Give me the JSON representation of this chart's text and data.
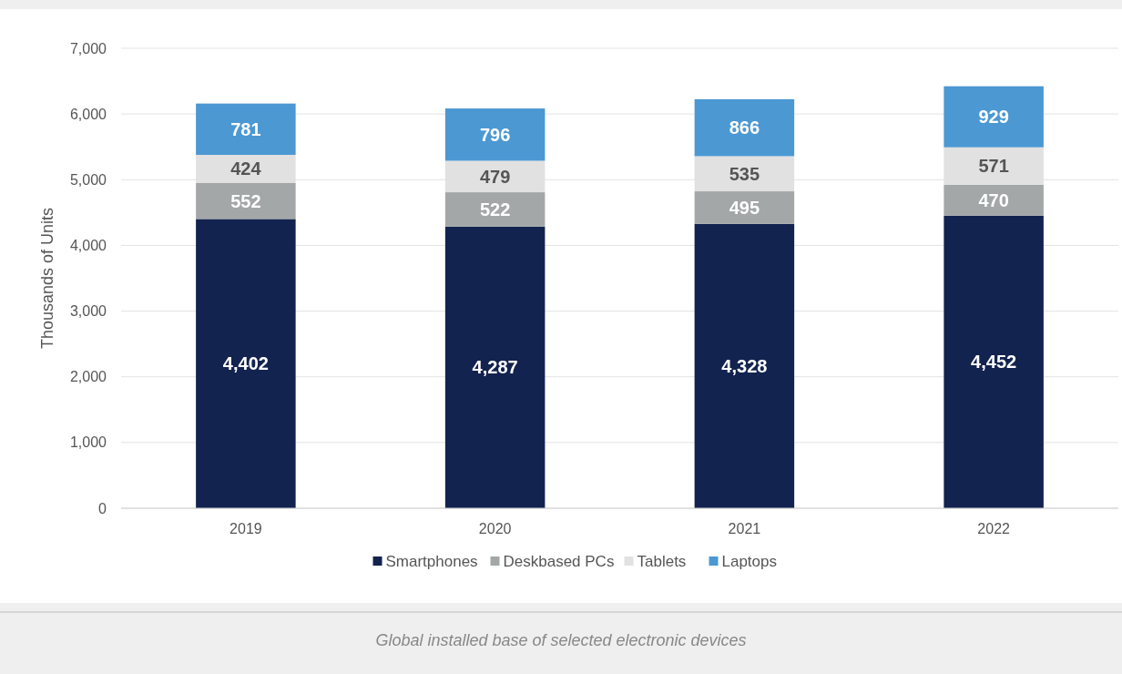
{
  "chart_data": {
    "type": "bar",
    "stacked": true,
    "ylabel": "Thousands of Units",
    "categories": [
      "2019",
      "2020",
      "2021",
      "2022"
    ],
    "series": [
      {
        "name": "Smartphones",
        "color": "#13234f",
        "values": [
          4402,
          4287,
          4328,
          4452
        ],
        "value_labels": [
          "4,402",
          "4,287",
          "4,328",
          "4,452"
        ]
      },
      {
        "name": "Deskbased PCs",
        "color": "#a3a7a8",
        "values": [
          552,
          522,
          495,
          470
        ],
        "value_labels": [
          "552",
          "522",
          "495",
          "470"
        ]
      },
      {
        "name": "Tablets",
        "color": "#e1e1e1",
        "values": [
          424,
          479,
          535,
          571
        ],
        "value_labels": [
          "424",
          "479",
          "535",
          "571"
        ]
      },
      {
        "name": "Laptops",
        "color": "#4b98d3",
        "values": [
          781,
          796,
          866,
          929
        ],
        "value_labels": [
          "781",
          "796",
          "866",
          "929"
        ]
      }
    ],
    "ylim": [
      0,
      7000
    ],
    "yticks": [
      {
        "value": 0,
        "label": "0"
      },
      {
        "value": 1000,
        "label": "1,000"
      },
      {
        "value": 2000,
        "label": "2,000"
      },
      {
        "value": 3000,
        "label": "3,000"
      },
      {
        "value": 4000,
        "label": "4,000"
      },
      {
        "value": 5000,
        "label": "5,000"
      },
      {
        "value": 6000,
        "label": "6,000"
      },
      {
        "value": 7000,
        "label": "7,000"
      }
    ],
    "grid": "y",
    "legend": "bottom",
    "annotations": [
      "Global installed base of selected electronic devices"
    ]
  }
}
